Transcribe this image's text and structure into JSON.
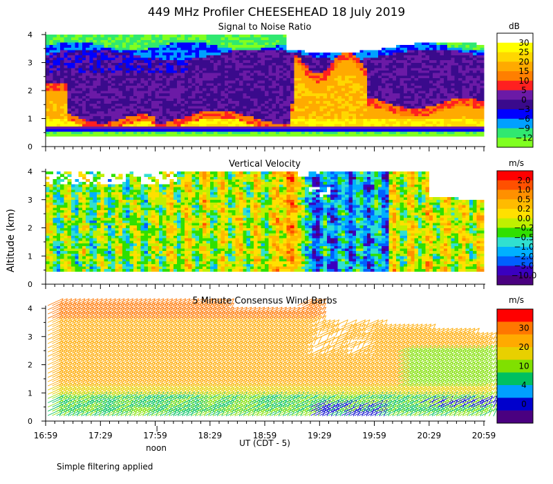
{
  "chart_data": {
    "type": "heatmap",
    "title": "449 MHz Profiler CHEESEHEAD 18 July 2019",
    "ylabel": "Altitude (km)",
    "xlabel": "UT  (CDT - 5)",
    "x_annotation": "noon",
    "footnote": "Simple filtering applied",
    "x_ticks": [
      "16:59",
      "17:29",
      "17:59",
      "18:29",
      "18:59",
      "19:29",
      "19:59",
      "20:29",
      "20:59"
    ],
    "x_range_hours_after_1659": [
      0,
      4
    ],
    "noon_hours_after_1659": 1.0167,
    "panels": [
      {
        "name": "snr",
        "title": "Signal to Noise Ratio",
        "unit": "dB",
        "ylim": [
          0,
          4
        ],
        "y_ticks": [
          "0",
          "1",
          "2",
          "3",
          "4"
        ],
        "levels": [
          "30",
          "25",
          "20",
          "15",
          "10",
          "5",
          "0",
          "−3",
          "−6",
          "−9",
          "−12"
        ],
        "colors": [
          "#ffffff",
          "#ffff00",
          "#ffd700",
          "#ffaa00",
          "#ff7f00",
          "#ff2020",
          "#6b1aa6",
          "#3a0a8c",
          "#0000ff",
          "#00a0ff",
          "#30e870",
          "#80ff20"
        ]
      },
      {
        "name": "vv",
        "title": "Vertical Velocity",
        "unit": "m/s",
        "ylim": [
          0,
          4
        ],
        "y_ticks": [
          "0",
          "1",
          "2",
          "3",
          "4"
        ],
        "levels": [
          "2.0",
          "1.0",
          "0.5",
          "0.2",
          "0.0",
          "−0.2",
          "−0.5",
          "−1.0",
          "−2.0",
          "−5.0",
          "−10.0"
        ],
        "colors": [
          "#ff0000",
          "#ff5000",
          "#ff9000",
          "#ffbb00",
          "#ffe000",
          "#c0f000",
          "#30e000",
          "#30e0d0",
          "#00b0ff",
          "#0060ff",
          "#3a00c0",
          "#4a0080"
        ]
      },
      {
        "name": "wind",
        "title": "5 Minute Consensus Wind Barbs",
        "unit": "m/s",
        "ylim": [
          0,
          4
        ],
        "y_ticks": [
          "0",
          "1",
          "2",
          "3",
          "4"
        ],
        "levels": [
          "30",
          "20",
          "10",
          "4",
          "0"
        ],
        "colors": [
          "#ff0000",
          "#ff7700",
          "#ffaa00",
          "#e8d000",
          "#80e000",
          "#00c060",
          "#00a0ff",
          "#0000cc",
          "#4a0080"
        ]
      }
    ]
  }
}
